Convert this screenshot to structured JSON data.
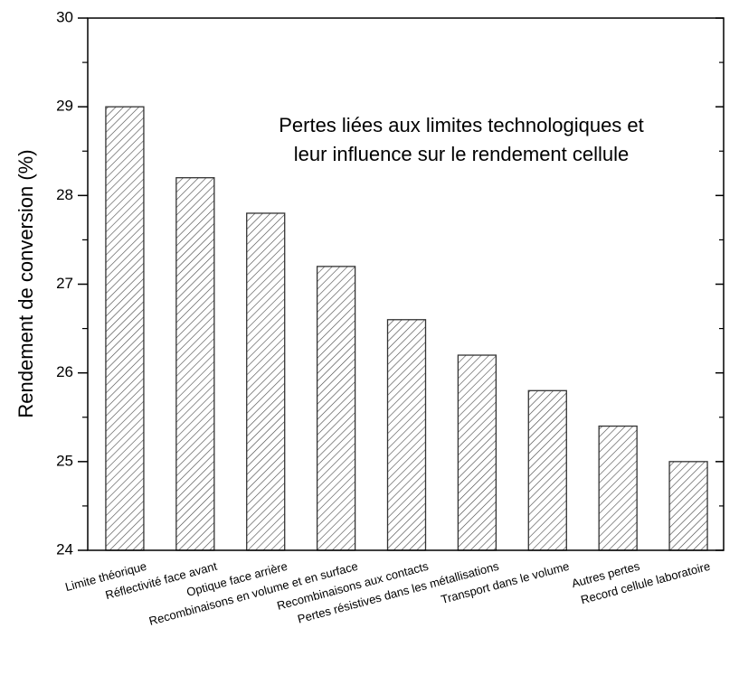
{
  "chart_data": {
    "type": "bar",
    "annotation": [
      "Pertes liées aux limites technologiques et",
      "leur influence sur le rendement cellule"
    ],
    "ylabel": "Rendement de conversion (%)",
    "categories": [
      "Limite théorique",
      "Réflectivité face avant",
      "Optique face arrière",
      "Recombinaisons en volume et en surface",
      "Recombinaisons aux contacts",
      "Pertes résistives dans les métallisations",
      "Transport dans le volume",
      "Autres pertes",
      "Record cellule laboratoire"
    ],
    "values": [
      29,
      28.2,
      27.8,
      27.2,
      26.6,
      26.2,
      25.8,
      25.4,
      25.0
    ],
    "color": "#333333",
    "ylim": [
      24,
      30
    ],
    "yticks": [
      24,
      25,
      26,
      27,
      28,
      29,
      30
    ],
    "grid": false
  }
}
